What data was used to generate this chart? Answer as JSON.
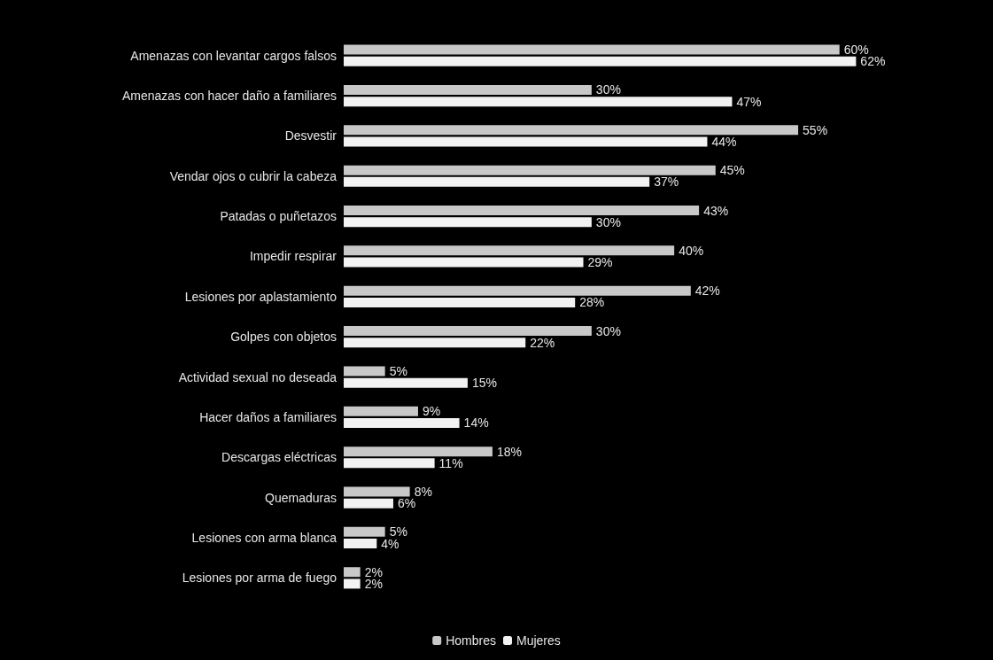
{
  "chart_data": {
    "type": "bar",
    "orientation": "horizontal",
    "categories": [
      "Amenazas con levantar cargos falsos",
      "Amenazas con hacer daño a familiares",
      "Desvestir",
      "Vendar ojos o cubrir la cabeza",
      "Patadas o puñetazos",
      "Impedir respirar",
      "Lesiones por aplastamiento",
      "Golpes con objetos",
      "Actividad sexual no deseada",
      "Hacer daños a familiares",
      "Descargas eléctricas",
      "Quemaduras",
      "Lesiones con arma blanca",
      "Lesiones por arma de fuego"
    ],
    "series": [
      {
        "name": "Hombres",
        "color": "#c8c8c8",
        "values": [
          60,
          30,
          55,
          45,
          43,
          40,
          42,
          30,
          5,
          9,
          18,
          8,
          5,
          2
        ],
        "value_labels": [
          "60%",
          "30%",
          "55%",
          "45%",
          "43%",
          "40%",
          "42%",
          "30%",
          "5%",
          "9%",
          "18%",
          "8%",
          "5%",
          "2%"
        ]
      },
      {
        "name": "Mujeres",
        "color": "#f2f2f2",
        "values": [
          62,
          47,
          44,
          37,
          30,
          29,
          28,
          22,
          15,
          14,
          11,
          6,
          4,
          2
        ],
        "value_labels": [
          "62%",
          "47%",
          "44%",
          "37%",
          "30%",
          "29%",
          "28%",
          "22%",
          "15%",
          "14%",
          "11%",
          "6%",
          "4%",
          "2%"
        ]
      }
    ],
    "legend": "bottom"
  }
}
